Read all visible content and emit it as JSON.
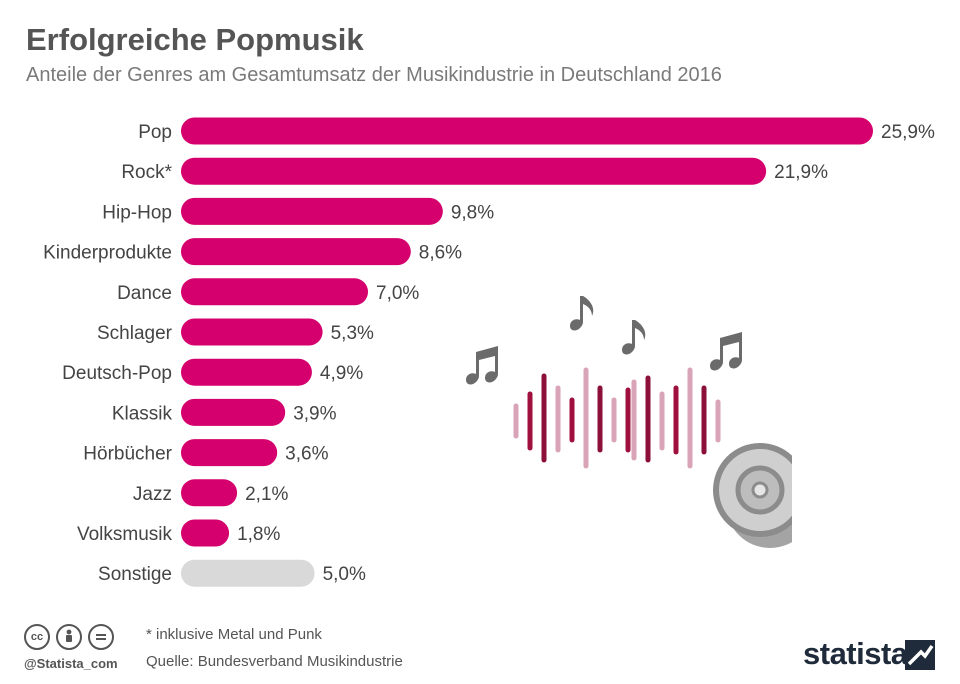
{
  "header": {
    "title": "Erfolgreiche Popmusik",
    "subtitle": "Anteile der Genres am Gesamtumsatz der Musikindustrie in Deutschland 2016"
  },
  "chart_data": {
    "type": "bar",
    "orientation": "horizontal",
    "title": "Erfolgreiche Popmusik",
    "subtitle": "Anteile der Genres am Gesamtumsatz der Musikindustrie in Deutschland 2016",
    "unit": "%",
    "categories": [
      "Pop",
      "Rock*",
      "Hip-Hop",
      "Kinderprodukte",
      "Dance",
      "Schlager",
      "Deutsch-Pop",
      "Klassik",
      "Hörbücher",
      "Jazz",
      "Volksmusik",
      "Sonstige"
    ],
    "values": [
      25.9,
      21.9,
      9.8,
      8.6,
      7.0,
      5.3,
      4.9,
      3.9,
      3.6,
      2.1,
      1.8,
      5.0
    ],
    "value_labels": [
      "25,9%",
      "21,9%",
      "9,8%",
      "8,6%",
      "7,0%",
      "5,3%",
      "4,9%",
      "3,9%",
      "3,6%",
      "2,1%",
      "1,8%",
      "5,0%"
    ],
    "bar_color": "#d5006d",
    "other_color": "#d9d9d9",
    "grid": false,
    "legend": "none"
  },
  "footer": {
    "note": "* inklusive Metal und Punk",
    "source": "Quelle: Bundesverband Musikindustrie",
    "handle": "@Statista_com",
    "brand": "statista",
    "license_icons": [
      "cc-icon",
      "by-icon",
      "nd-icon"
    ]
  },
  "illustration": {
    "icons": [
      "music-note-icon",
      "sound-wave-icon",
      "speaker-icon"
    ]
  }
}
